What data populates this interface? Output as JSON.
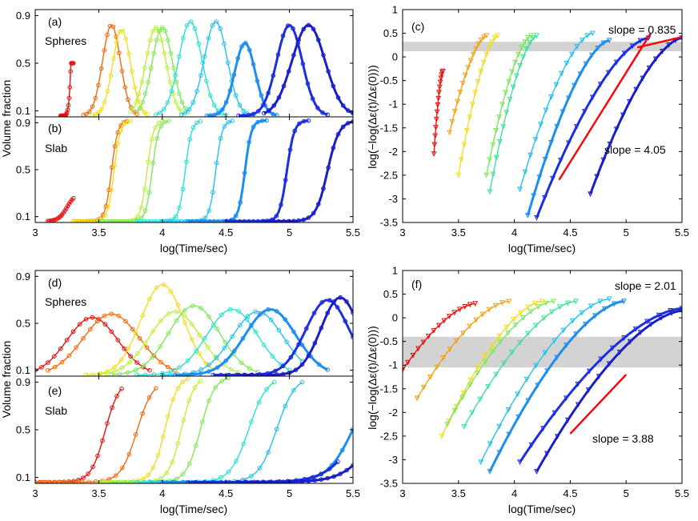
{
  "figure": {
    "panels": {
      "a": {
        "letter": "(a)",
        "label": "Spheres"
      },
      "b": {
        "letter": "(b)",
        "label": "Slab"
      },
      "c": {
        "letter": "(c)",
        "slope_top": "slope = 0.835",
        "slope_bottom": "slope = 4.05"
      },
      "d": {
        "letter": "(d)",
        "label": "Spheres"
      },
      "e": {
        "letter": "(e)",
        "label": "Slab"
      },
      "f": {
        "letter": "(f)",
        "slope_top": "slope = 2.01",
        "slope_bottom": "slope = 3.88"
      }
    },
    "ylabel_left": "Volume fraction",
    "ylabel_right": "log(−log(Δε(t)/Δε(0)))",
    "xlabel": "log(Time/sec)",
    "colors": [
      "#e8110e",
      "#ef6a10",
      "#f4a214",
      "#f2dc1e",
      "#bdf03a",
      "#7ee85a",
      "#3fe09a",
      "#25e2d2",
      "#20c2ee",
      "#1c8ef0",
      "#1d58e8",
      "#1c2ee0",
      "#1a1ec8"
    ]
  },
  "chart_data": [
    {
      "id": "a",
      "type": "line",
      "title": "Spheres",
      "xlim": [
        3,
        5.5
      ],
      "ylim": [
        0.05,
        0.95
      ],
      "xticks": [
        3,
        3.5,
        4,
        4.5,
        5,
        5.5
      ],
      "yticks": [
        0.1,
        0.5,
        0.9
      ],
      "ylabel": "Volume fraction",
      "xlabel": "",
      "series": [
        {
          "name": "s1",
          "peak_x": 3.28,
          "peak_y": 0.5,
          "width": 0.03,
          "start": 3.2,
          "end": 3.3,
          "shape": "spike"
        },
        {
          "name": "s2",
          "peak_x": 3.6,
          "peak_y": 0.82,
          "width": 0.07,
          "start": 3.38,
          "end": 3.8
        },
        {
          "name": "s3",
          "peak_x": 3.68,
          "peak_y": 0.78,
          "width": 0.07,
          "start": 3.45,
          "end": 3.88
        },
        {
          "name": "s4",
          "peak_x": 3.95,
          "peak_y": 0.8,
          "width": 0.08,
          "start": 3.75,
          "end": 4.15
        },
        {
          "name": "s5",
          "peak_x": 4.0,
          "peak_y": 0.8,
          "width": 0.08,
          "start": 3.8,
          "end": 4.2
        },
        {
          "name": "s6",
          "peak_x": 4.22,
          "peak_y": 0.85,
          "width": 0.09,
          "start": 3.95,
          "end": 4.5
        },
        {
          "name": "s7",
          "peak_x": 4.42,
          "peak_y": 0.85,
          "width": 0.09,
          "start": 4.15,
          "end": 4.7
        },
        {
          "name": "s8",
          "peak_x": 4.65,
          "peak_y": 0.67,
          "width": 0.08,
          "start": 4.35,
          "end": 4.9
        },
        {
          "name": "s9",
          "peak_x": 5.0,
          "peak_y": 0.82,
          "width": 0.1,
          "start": 4.6,
          "end": 5.3
        },
        {
          "name": "s10",
          "peak_x": 5.15,
          "peak_y": 0.82,
          "width": 0.13,
          "start": 4.8,
          "end": 5.5
        }
      ]
    },
    {
      "id": "b",
      "type": "line",
      "title": "Slab",
      "xlim": [
        3,
        5.5
      ],
      "ylim": [
        0.05,
        0.95
      ],
      "xticks": [
        3,
        3.5,
        4,
        4.5,
        5,
        5.5
      ],
      "yticks": [
        0.1,
        0.5,
        0.9
      ],
      "xlabel": "log(Time/sec)",
      "series": [
        {
          "name": "s1",
          "mid_x": 3.25,
          "top": 0.3,
          "k": 30,
          "start": 3.1,
          "end": 3.3
        },
        {
          "name": "s2",
          "mid_x": 3.6,
          "top": 0.92,
          "k": 40,
          "start": 3.3,
          "end": 3.72
        },
        {
          "name": "s3",
          "mid_x": 3.62,
          "top": 0.92,
          "k": 40,
          "start": 3.3,
          "end": 3.75
        },
        {
          "name": "s4",
          "mid_x": 3.88,
          "top": 0.92,
          "k": 40,
          "start": 3.5,
          "end": 4.0
        },
        {
          "name": "s5",
          "mid_x": 3.92,
          "top": 0.92,
          "k": 40,
          "start": 3.5,
          "end": 4.05
        },
        {
          "name": "s6",
          "mid_x": 4.18,
          "top": 0.92,
          "k": 40,
          "start": 3.8,
          "end": 4.3
        },
        {
          "name": "s7",
          "mid_x": 4.42,
          "top": 0.92,
          "k": 40,
          "start": 4.0,
          "end": 4.55
        },
        {
          "name": "s8",
          "mid_x": 4.65,
          "top": 0.92,
          "k": 40,
          "start": 4.2,
          "end": 4.82
        },
        {
          "name": "s9",
          "mid_x": 4.98,
          "top": 0.92,
          "k": 35,
          "start": 4.5,
          "end": 5.15
        },
        {
          "name": "s10",
          "mid_x": 5.3,
          "top": 0.92,
          "k": 22,
          "start": 4.8,
          "end": 5.5
        }
      ]
    },
    {
      "id": "c",
      "type": "line",
      "title": "",
      "xlim": [
        3,
        5.5
      ],
      "ylim": [
        -3.5,
        1
      ],
      "xticks": [
        3,
        3.5,
        4,
        4.5,
        5,
        5.5
      ],
      "yticks": [
        1,
        0.5,
        0,
        -0.5,
        -1,
        -1.5,
        -2,
        -2.5,
        -3,
        -3.5
      ],
      "xlabel": "log(Time/sec)",
      "ylabel": "log(−log(Δε(t)/Δε(0)))",
      "band": [
        0.12,
        0.32
      ],
      "series": [
        {
          "name": "s1",
          "x0": 3.28,
          "y0": -2.05,
          "x1": 3.36,
          "y1": -0.3
        },
        {
          "name": "s2",
          "x0": 3.42,
          "y0": -1.6,
          "x1": 3.75,
          "y1": 0.45
        },
        {
          "name": "s3",
          "x0": 3.5,
          "y0": -2.5,
          "x1": 3.85,
          "y1": 0.45
        },
        {
          "name": "s4",
          "x0": 3.75,
          "y0": -2.5,
          "x1": 4.15,
          "y1": 0.45
        },
        {
          "name": "s5",
          "x0": 3.78,
          "y0": -2.85,
          "x1": 4.2,
          "y1": 0.45
        },
        {
          "name": "s6",
          "x0": 4.05,
          "y0": -2.8,
          "x1": 4.7,
          "y1": 0.5
        },
        {
          "name": "s7",
          "x0": 4.12,
          "y0": -3.35,
          "x1": 4.85,
          "y1": 0.35
        },
        {
          "name": "s8",
          "x0": 4.2,
          "y0": -3.4,
          "x1": 5.2,
          "y1": 0.4
        },
        {
          "name": "s9",
          "x0": 4.68,
          "y0": -2.9,
          "x1": 5.5,
          "y1": 0.4
        }
      ],
      "fits": [
        {
          "x": [
            4.4,
            5.22
          ],
          "y": [
            -2.6,
            0.5
          ],
          "slope": 4.05
        },
        {
          "x": [
            5.1,
            5.5
          ],
          "y": [
            0.2,
            0.42
          ],
          "slope": 0.835
        }
      ]
    },
    {
      "id": "d",
      "type": "line",
      "title": "Spheres",
      "xlim": [
        3,
        5.5
      ],
      "ylim": [
        0.05,
        0.95
      ],
      "xticks": [
        3,
        3.5,
        4,
        4.5,
        5,
        5.5
      ],
      "yticks": [
        0.1,
        0.5,
        0.9
      ],
      "ylabel": "Volume fraction",
      "series": [
        {
          "name": "s1",
          "peak_x": 3.45,
          "peak_y": 0.55,
          "width": 0.2,
          "start": 3.0,
          "end": 3.9
        },
        {
          "name": "s2",
          "peak_x": 3.6,
          "peak_y": 0.58,
          "width": 0.22,
          "start": 3.1,
          "end": 4.1
        },
        {
          "name": "s3",
          "peak_x": 4.0,
          "peak_y": 0.83,
          "width": 0.17,
          "start": 3.4,
          "end": 4.4
        },
        {
          "name": "s4",
          "peak_x": 4.1,
          "peak_y": 0.6,
          "width": 0.2,
          "start": 3.5,
          "end": 4.6
        },
        {
          "name": "s5",
          "peak_x": 4.25,
          "peak_y": 0.65,
          "width": 0.2,
          "start": 3.6,
          "end": 4.75
        },
        {
          "name": "s6",
          "peak_x": 4.55,
          "peak_y": 0.62,
          "width": 0.2,
          "start": 3.8,
          "end": 5.0
        },
        {
          "name": "s7",
          "peak_x": 4.75,
          "peak_y": 0.6,
          "width": 0.2,
          "start": 4.0,
          "end": 5.1
        },
        {
          "name": "s8",
          "peak_x": 4.85,
          "peak_y": 0.62,
          "width": 0.2,
          "start": 4.1,
          "end": 5.3
        },
        {
          "name": "s9",
          "peak_x": 5.3,
          "peak_y": 0.7,
          "width": 0.17,
          "start": 4.4,
          "end": 5.5
        },
        {
          "name": "s10",
          "peak_x": 5.4,
          "peak_y": 0.72,
          "width": 0.15,
          "start": 4.6,
          "end": 5.5
        }
      ]
    },
    {
      "id": "e",
      "type": "line",
      "title": "Slab",
      "xlim": [
        3,
        5.5
      ],
      "ylim": [
        0.05,
        0.95
      ],
      "xticks": [
        3,
        3.5,
        4,
        4.5,
        5,
        5.5
      ],
      "yticks": [
        0.1,
        0.5,
        0.9
      ],
      "xlabel": "log(Time/sec)",
      "series": [
        {
          "name": "s1",
          "mid_x": 3.55,
          "top": 0.92,
          "k": 18,
          "start": 3.0,
          "end": 3.68
        },
        {
          "name": "s2",
          "mid_x": 3.8,
          "top": 0.92,
          "k": 16,
          "start": 3.0,
          "end": 3.95
        },
        {
          "name": "s3",
          "mid_x": 4.02,
          "top": 0.95,
          "k": 20,
          "start": 3.5,
          "end": 4.2
        },
        {
          "name": "s4",
          "mid_x": 4.15,
          "top": 0.95,
          "k": 20,
          "start": 3.5,
          "end": 4.3
        },
        {
          "name": "s5",
          "mid_x": 4.3,
          "top": 0.95,
          "k": 18,
          "start": 3.6,
          "end": 4.52
        },
        {
          "name": "s6",
          "mid_x": 4.68,
          "top": 0.95,
          "k": 14,
          "start": 3.8,
          "end": 4.88
        },
        {
          "name": "s7",
          "mid_x": 4.9,
          "top": 0.95,
          "k": 14,
          "start": 3.9,
          "end": 5.1
        },
        {
          "name": "s8",
          "mid_x": 5.5,
          "top": 0.95,
          "k": 10,
          "start": 4.0,
          "end": 5.5
        },
        {
          "name": "s9",
          "mid_x": 5.55,
          "top": 0.9,
          "k": 8,
          "start": 4.2,
          "end": 5.38
        },
        {
          "name": "s10",
          "mid_x": 5.7,
          "top": 0.9,
          "k": 8,
          "start": 4.6,
          "end": 5.5
        }
      ]
    },
    {
      "id": "f",
      "type": "line",
      "title": "",
      "xlim": [
        3,
        5.5
      ],
      "ylim": [
        -3.5,
        1
      ],
      "xticks": [
        3,
        3.5,
        4,
        4.5,
        5,
        5.5
      ],
      "yticks": [
        1,
        0.5,
        0,
        -0.5,
        -1,
        -1.5,
        -2,
        -2.5,
        -3,
        -3.5
      ],
      "xlabel": "log(Time/sec)",
      "ylabel": "log(−log(Δε(t)/Δε(0)))",
      "band": [
        -1.05,
        -0.4
      ],
      "series": [
        {
          "name": "s1",
          "x0": 3.0,
          "y0": -1.1,
          "x1": 3.65,
          "y1": 0.3
        },
        {
          "name": "s2",
          "x0": 3.13,
          "y0": -1.7,
          "x1": 3.95,
          "y1": 0.35
        },
        {
          "name": "s3",
          "x0": 3.35,
          "y0": -2.5,
          "x1": 4.25,
          "y1": 0.35
        },
        {
          "name": "s4",
          "x0": 3.4,
          "y0": -2.25,
          "x1": 4.35,
          "y1": 0.35
        },
        {
          "name": "s5",
          "x0": 3.55,
          "y0": -2.3,
          "x1": 4.55,
          "y1": 0.35
        },
        {
          "name": "s6",
          "x0": 3.7,
          "y0": -3.05,
          "x1": 4.85,
          "y1": 0.4
        },
        {
          "name": "s7",
          "x0": 3.78,
          "y0": -3.25,
          "x1": 4.98,
          "y1": 0.35
        },
        {
          "name": "s8",
          "x0": 4.05,
          "y0": -3.05,
          "x1": 5.5,
          "y1": 0.2
        },
        {
          "name": "s9",
          "x0": 4.2,
          "y0": -3.25,
          "x1": 5.5,
          "y1": 0.15
        }
      ],
      "fits": [
        {
          "x": [
            4.5,
            5.0
          ],
          "y": [
            -2.45,
            -1.2
          ],
          "slope": 3.88
        }
      ]
    }
  ]
}
